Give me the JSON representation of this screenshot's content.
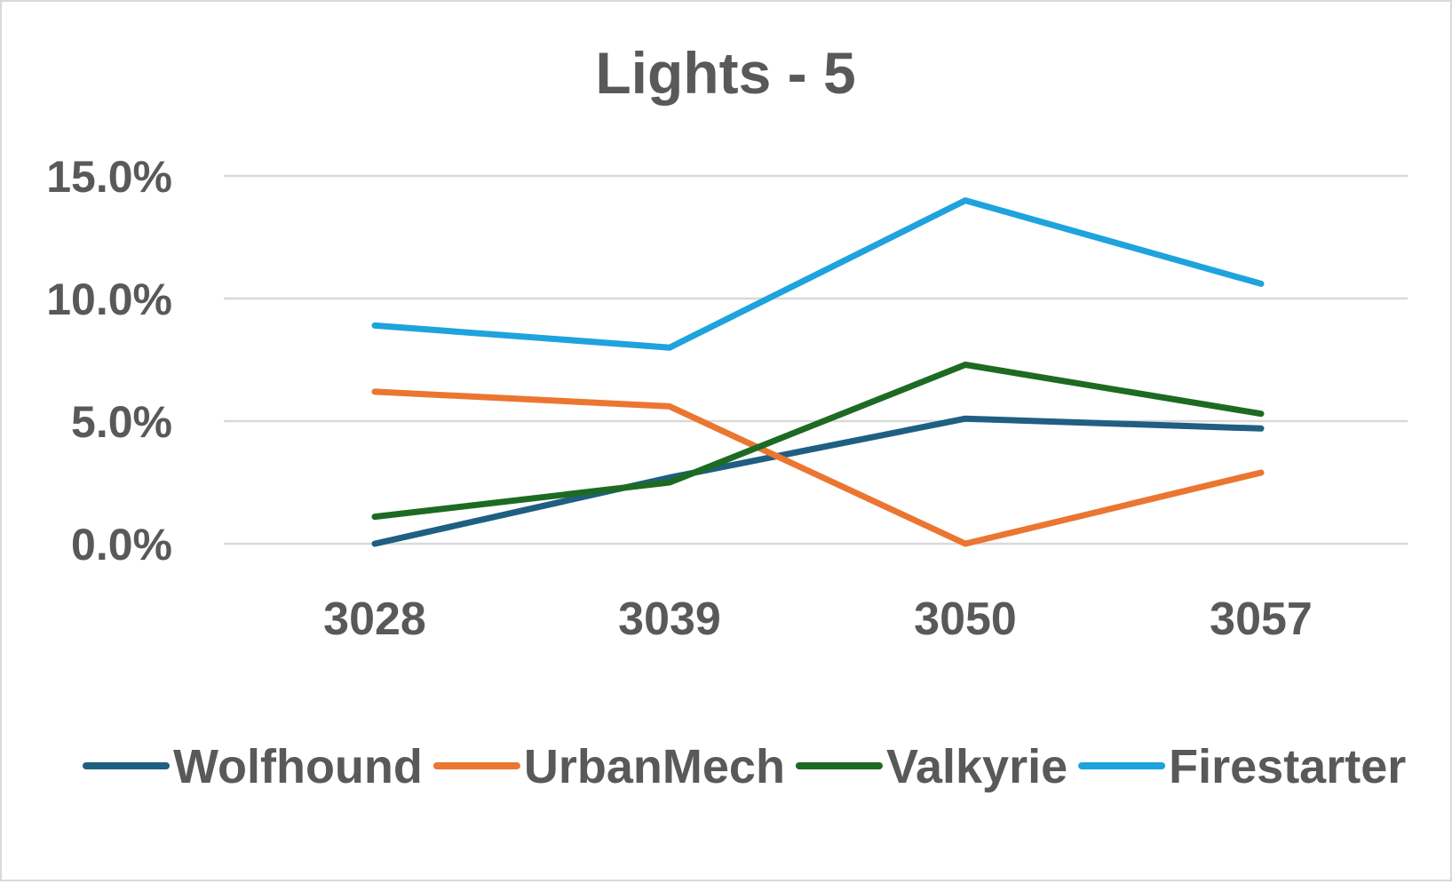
{
  "chart_data": {
    "type": "line",
    "title": "Lights - 5",
    "xlabel": "",
    "ylabel": "",
    "categories": [
      "3028",
      "3039",
      "3050",
      "3057"
    ],
    "ylim": [
      0,
      15
    ],
    "yticks": [
      0,
      5,
      10,
      15
    ],
    "ytick_labels": [
      "0.0%",
      "5.0%",
      "10.0%",
      "15.0%"
    ],
    "grid": true,
    "legend_position": "bottom",
    "series": [
      {
        "name": "Wolfhound",
        "color": "#1f5f82",
        "values": [
          0.0,
          2.7,
          5.1,
          4.7
        ]
      },
      {
        "name": "UrbanMech",
        "color": "#eb7631",
        "values": [
          6.2,
          5.6,
          0.0,
          2.9
        ]
      },
      {
        "name": "Valkyrie",
        "color": "#1d6b22",
        "values": [
          1.1,
          2.5,
          7.3,
          5.3
        ]
      },
      {
        "name": "Firestarter",
        "color": "#1ea3dd",
        "values": [
          8.9,
          8.0,
          14.0,
          10.6
        ]
      }
    ],
    "colors": {
      "gridline": "#d9d9d9",
      "text": "#595959",
      "border": "#d9d9d9"
    }
  }
}
